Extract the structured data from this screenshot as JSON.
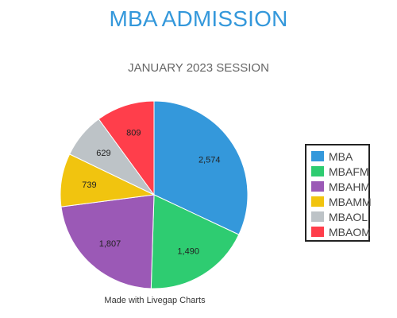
{
  "page": {
    "title": "MBA ADMISSION",
    "subtitle": "JANUARY 2023 SESSION",
    "footer": "Made with Livegap Charts"
  },
  "chart_data": {
    "type": "pie",
    "categories": [
      "MBA",
      "MBAFM",
      "MBAHM",
      "MBAMM",
      "MBAOL",
      "MBAOM"
    ],
    "values": [
      2574,
      1490,
      1807,
      739,
      629,
      809
    ],
    "value_labels": [
      "2,574",
      "1,490",
      "1,807",
      "739",
      "629",
      "809"
    ],
    "colors": [
      "#3498db",
      "#2ecc71",
      "#9b59b6",
      "#f1c40f",
      "#bdc3c7",
      "#ff3e4b"
    ],
    "legend": "right",
    "start_angle": "top",
    "direction": "clockwise"
  }
}
